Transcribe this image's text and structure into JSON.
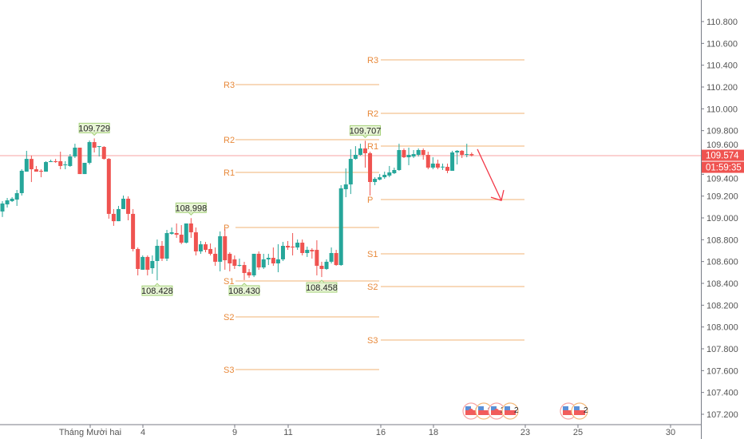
{
  "chart_data": {
    "type": "candlestick",
    "title": "",
    "colors": {
      "up": "#26a69a",
      "down": "#ef5350",
      "pivot": "#f0a65c",
      "pivot_label": "#e8893a",
      "last_price": "#ef5350",
      "arrow": "#f23645",
      "hl_label_bg": "#e8f5d6",
      "hl_label_border": "#a5d07a"
    },
    "price_axis": {
      "ticks": [
        "110.800",
        "110.600",
        "110.400",
        "110.200",
        "110.000",
        "109.800",
        "109.600",
        "109.400",
        "109.200",
        "109.000",
        "108.800",
        "108.600",
        "108.400",
        "108.200",
        "108.000",
        "107.800",
        "107.600",
        "107.400",
        "107.200"
      ],
      "ylim": [
        107.2,
        110.8
      ]
    },
    "time_axis": {
      "ticks": [
        "Tháng Mười hai",
        "4",
        "9",
        "11",
        "16",
        "18",
        "23",
        "25",
        "30"
      ]
    },
    "last_price": {
      "value": "109.574",
      "countdown": "01:59:35"
    },
    "candles_ohlc": [
      [
        109.059,
        109.154,
        109.008,
        109.132
      ],
      [
        109.124,
        109.183,
        109.095,
        109.161
      ],
      [
        109.154,
        109.19,
        109.146,
        109.176
      ],
      [
        109.168,
        109.256,
        109.11,
        109.227
      ],
      [
        109.227,
        109.446,
        109.205,
        109.432
      ],
      [
        109.424,
        109.615,
        109.424,
        109.541
      ],
      [
        109.541,
        109.571,
        109.329,
        109.446
      ],
      [
        109.446,
        109.476,
        109.424,
        109.424
      ],
      [
        109.432,
        109.446,
        109.373,
        109.424
      ],
      [
        109.424,
        109.52,
        109.424,
        109.512
      ],
      [
        109.512,
        109.534,
        109.512,
        109.52
      ],
      [
        109.52,
        109.541,
        109.505,
        109.512
      ],
      [
        109.52,
        109.607,
        109.446,
        109.476
      ],
      [
        109.483,
        109.52,
        109.446,
        109.49
      ],
      [
        109.476,
        109.585,
        109.468,
        109.563
      ],
      [
        109.563,
        109.68,
        109.549,
        109.644
      ],
      [
        109.644,
        109.644,
        109.402,
        109.402
      ],
      [
        109.402,
        109.505,
        109.402,
        109.505
      ],
      [
        109.505,
        109.71,
        109.49,
        109.695
      ],
      [
        109.695,
        109.729,
        109.6,
        109.644
      ],
      [
        109.651,
        109.658,
        109.563,
        109.658
      ],
      [
        109.651,
        109.658,
        109.534,
        109.541
      ],
      [
        109.541,
        109.549,
        108.993,
        109.037
      ],
      [
        109.037,
        109.081,
        108.927,
        108.97
      ],
      [
        108.97,
        109.11,
        108.97,
        109.081
      ],
      [
        109.081,
        109.205,
        109.081,
        109.176
      ],
      [
        109.176,
        109.198,
        108.978,
        109.037
      ],
      [
        109.037,
        109.081,
        108.693,
        108.715
      ],
      [
        108.715,
        108.729,
        108.473,
        108.532
      ],
      [
        108.525,
        108.656,
        108.525,
        108.642
      ],
      [
        108.642,
        108.656,
        108.473,
        108.525
      ],
      [
        108.539,
        108.656,
        108.488,
        108.605
      ],
      [
        108.605,
        108.802,
        108.428,
        108.744
      ],
      [
        108.744,
        108.788,
        108.605,
        108.627
      ],
      [
        108.627,
        108.89,
        108.605,
        108.861
      ],
      [
        108.854,
        108.912,
        108.846,
        108.868
      ],
      [
        108.861,
        108.949,
        108.817,
        108.846
      ],
      [
        108.846,
        108.934,
        108.759,
        108.773
      ],
      [
        108.773,
        108.949,
        108.766,
        108.949
      ],
      [
        108.949,
        108.998,
        108.817,
        108.868
      ],
      [
        108.868,
        108.912,
        108.656,
        108.693
      ],
      [
        108.693,
        108.788,
        108.671,
        108.758
      ],
      [
        108.758,
        108.78,
        108.685,
        108.707
      ],
      [
        108.715,
        108.766,
        108.656,
        108.671
      ],
      [
        108.671,
        108.729,
        108.561,
        108.598
      ],
      [
        108.598,
        108.876,
        108.51,
        108.832
      ],
      [
        108.832,
        108.898,
        108.525,
        108.612
      ],
      [
        108.671,
        108.685,
        108.51,
        108.583
      ],
      [
        108.62,
        108.656,
        108.532,
        108.561
      ],
      [
        108.561,
        108.627,
        108.554,
        108.568
      ],
      [
        108.568,
        108.598,
        108.43,
        108.495
      ],
      [
        108.502,
        108.532,
        108.451,
        108.473
      ],
      [
        108.473,
        108.671,
        108.458,
        108.671
      ],
      [
        108.671,
        108.693,
        108.524,
        108.546
      ],
      [
        108.546,
        108.671,
        108.532,
        108.62
      ],
      [
        108.62,
        108.671,
        108.568,
        108.634
      ],
      [
        108.634,
        108.729,
        108.561,
        108.583
      ],
      [
        108.583,
        108.759,
        108.502,
        108.62
      ],
      [
        108.62,
        108.78,
        108.605,
        108.744
      ],
      [
        108.744,
        108.788,
        108.707,
        108.729
      ],
      [
        108.737,
        108.861,
        108.656,
        108.729
      ],
      [
        108.729,
        108.802,
        108.707,
        108.773
      ],
      [
        108.773,
        108.802,
        108.656,
        108.678
      ],
      [
        108.678,
        108.737,
        108.642,
        108.707
      ],
      [
        108.707,
        108.722,
        108.627,
        108.693
      ],
      [
        108.707,
        108.795,
        108.473,
        108.561
      ],
      [
        108.561,
        108.598,
        108.458,
        108.532
      ],
      [
        108.532,
        108.62,
        108.524,
        108.598
      ],
      [
        108.598,
        108.729,
        108.583,
        108.678
      ],
      [
        108.678,
        108.707,
        108.561,
        108.568
      ],
      [
        108.568,
        109.3,
        108.561,
        109.271
      ],
      [
        109.263,
        109.454,
        109.19,
        109.307
      ],
      [
        109.307,
        109.629,
        109.219,
        109.541
      ],
      [
        109.541,
        109.658,
        109.534,
        109.578
      ],
      [
        109.578,
        109.68,
        109.571,
        109.637
      ],
      [
        109.637,
        109.707,
        109.461,
        109.593
      ],
      [
        109.593,
        109.607,
        109.205,
        109.329
      ],
      [
        109.329,
        109.373,
        109.3,
        109.358
      ],
      [
        109.351,
        109.402,
        109.344,
        109.373
      ],
      [
        109.373,
        109.424,
        109.358,
        109.395
      ],
      [
        109.388,
        109.476,
        109.373,
        109.417
      ],
      [
        109.41,
        109.461,
        109.402,
        109.439
      ],
      [
        109.439,
        109.68,
        109.432,
        109.622
      ],
      [
        109.622,
        109.637,
        109.549,
        109.556
      ],
      [
        109.556,
        109.644,
        109.483,
        109.578
      ],
      [
        109.563,
        109.622,
        109.549,
        109.585
      ],
      [
        109.578,
        109.637,
        109.563,
        109.622
      ],
      [
        109.622,
        109.637,
        109.534,
        109.578
      ],
      [
        109.578,
        109.607,
        109.446,
        109.461
      ],
      [
        109.461,
        109.556,
        109.446,
        109.498
      ],
      [
        109.498,
        109.534,
        109.446,
        109.461
      ],
      [
        109.466,
        109.498,
        109.439,
        109.47
      ],
      [
        109.468,
        109.498,
        109.41,
        109.432
      ],
      [
        109.432,
        109.615,
        109.432,
        109.6
      ],
      [
        109.6,
        109.622,
        109.49,
        109.615
      ],
      [
        109.615,
        109.622,
        109.549,
        109.578
      ],
      [
        109.578,
        109.68,
        109.556,
        109.585
      ],
      [
        109.585,
        109.6,
        109.563,
        109.574
      ]
    ],
    "high_low_labels": [
      {
        "candle": 19,
        "text": "109.729",
        "kind": "high"
      },
      {
        "candle": 32,
        "text": "108.428",
        "kind": "low"
      },
      {
        "candle": 39,
        "text": "108.998",
        "kind": "high"
      },
      {
        "candle": 50,
        "text": "108.430",
        "kind": "low"
      },
      {
        "candle": 66,
        "text": "108.458",
        "kind": "low"
      },
      {
        "candle": 75,
        "text": "109.707",
        "kind": "high"
      }
    ],
    "pivot_sets": [
      {
        "levels": [
          {
            "name": "R3",
            "value": 110.222
          },
          {
            "name": "R2",
            "value": 109.717
          },
          {
            "name": "R1",
            "value": 109.417
          },
          {
            "name": "P",
            "value": 108.912
          },
          {
            "name": "S1",
            "value": 108.422
          },
          {
            "name": "S2",
            "value": 108.093
          },
          {
            "name": "S3",
            "value": 107.61
          }
        ]
      },
      {
        "levels": [
          {
            "name": "R3",
            "value": 110.449
          },
          {
            "name": "R2",
            "value": 109.959
          },
          {
            "name": "R1",
            "value": 109.659
          },
          {
            "name": "P",
            "value": 109.168
          },
          {
            "name": "S1",
            "value": 108.671
          },
          {
            "name": "S2",
            "value": 108.371
          },
          {
            "name": "S3",
            "value": 107.881
          }
        ]
      }
    ],
    "projection_arrow": {
      "from_price": 109.63,
      "to_price": 109.16,
      "direction": "down"
    },
    "events": [
      {
        "icon": "us-flag-icon",
        "count": "6"
      },
      {
        "icon": "us-flag-icon",
        "count": "9"
      },
      {
        "icon": "us-flag-icon",
        "count": "2"
      },
      {
        "icon": "us-flag-icon",
        "count": "2"
      },
      {
        "icon": "us-flag-icon",
        "count": "2"
      },
      {
        "icon": "us-flag-icon",
        "count": "2"
      }
    ]
  }
}
